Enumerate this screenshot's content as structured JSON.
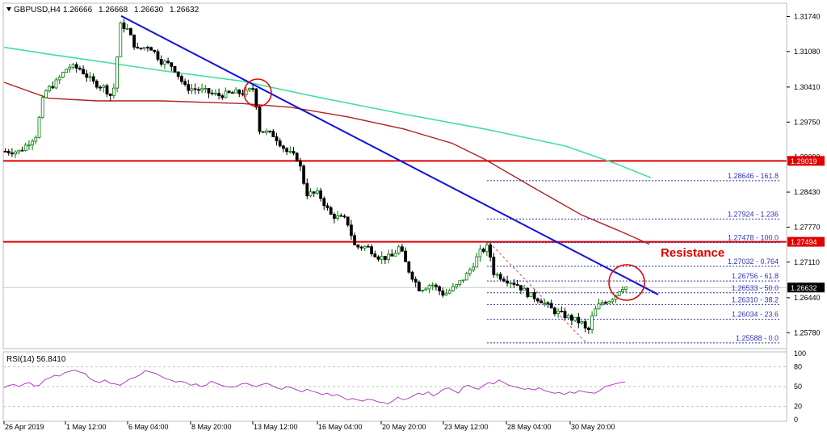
{
  "chart_data": {
    "type": "candlestick",
    "header": {
      "symbol": "GBPUSD,H4",
      "open": "1.26666",
      "high": "1.26668",
      "low": "1.26630",
      "close": "1.26632"
    },
    "y_ticks": [
      "1.31740",
      "1.31080",
      "1.30410",
      "1.29750",
      "1.29090",
      "1.28430",
      "1.27770",
      "1.27110",
      "1.26440",
      "1.25780"
    ],
    "x_ticks": [
      "26 Apr 2019",
      "1 May 12:00",
      "6 May 04:00",
      "8 May 20:00",
      "13 May 12:00",
      "16 May 04:00",
      "20 May 20:00",
      "23 May 12:00",
      "28 May 04:00",
      "30 May 20:00"
    ],
    "price_ylim": [
      1.2548,
      1.3199
    ],
    "price_badges": [
      {
        "value": "1.29019",
        "color": "#e00000"
      },
      {
        "value": "1.27494",
        "color": "#e00000"
      },
      {
        "value": "1.26632",
        "color": "#000000"
      }
    ],
    "horizontal_levels": [
      {
        "value": 1.29019,
        "color": "#e00000"
      },
      {
        "value": 1.27494,
        "color": "#e00000"
      }
    ],
    "fibonacci": [
      {
        "price": 1.28646,
        "label": "1.28646 - 161.8"
      },
      {
        "price": 1.27924,
        "label": "1.27924 - 1.236"
      },
      {
        "price": 1.27478,
        "label": "1.27478 - 100.0"
      },
      {
        "price": 1.27032,
        "label": "1.27032 - 0.764"
      },
      {
        "price": 1.26756,
        "label": "1.26756 - 61.8"
      },
      {
        "price": 1.26533,
        "label": "1.26533 - 50.0"
      },
      {
        "price": 1.2631,
        "label": "1.26310 - 38.2"
      },
      {
        "price": 1.26034,
        "label": "1.26034 - 23.6"
      },
      {
        "price": 1.25588,
        "label": "1.25588 - 0.0"
      }
    ],
    "annotation": {
      "text": "Resistance",
      "color": "#e00000"
    },
    "indicator": {
      "label": "RSI(14) 56.8410",
      "ticks": [
        "100",
        "80",
        "50",
        "20",
        "0"
      ],
      "levels": [
        80,
        50,
        20
      ],
      "values": [
        48,
        52,
        53,
        50,
        54,
        56,
        51,
        52,
        60,
        63,
        67,
        66,
        71,
        73,
        75,
        72,
        70,
        62,
        58,
        56,
        60,
        55,
        54,
        52,
        57,
        62,
        64,
        68,
        74,
        72,
        70,
        66,
        62,
        60,
        57,
        58,
        56,
        52,
        54,
        50,
        52,
        58,
        55,
        52,
        50,
        49,
        50,
        54,
        55,
        52,
        50,
        53,
        55,
        52,
        48,
        46,
        50,
        48,
        45,
        42,
        46,
        43,
        41,
        38,
        40,
        36,
        38,
        34,
        30,
        32,
        30,
        28,
        31,
        30,
        27,
        26,
        24,
        28,
        34,
        30,
        32,
        36,
        40,
        38,
        42,
        36,
        40,
        46,
        48,
        44,
        40,
        50,
        52,
        48,
        46,
        52,
        56,
        54,
        60,
        56,
        52,
        50,
        48,
        46,
        47,
        45,
        48,
        44,
        42,
        40,
        41,
        38,
        42,
        40,
        44,
        42,
        41,
        40,
        44,
        50,
        52,
        54,
        56,
        57
      ]
    },
    "colors": {
      "bull_candle": "#007a00",
      "bear_candle": "#000000",
      "trendline": "#1010e0",
      "ma_slow": "#40e0a0",
      "ma_fast": "#b02020",
      "fib": "#3030c0",
      "rsi": "#b040c0"
    }
  }
}
